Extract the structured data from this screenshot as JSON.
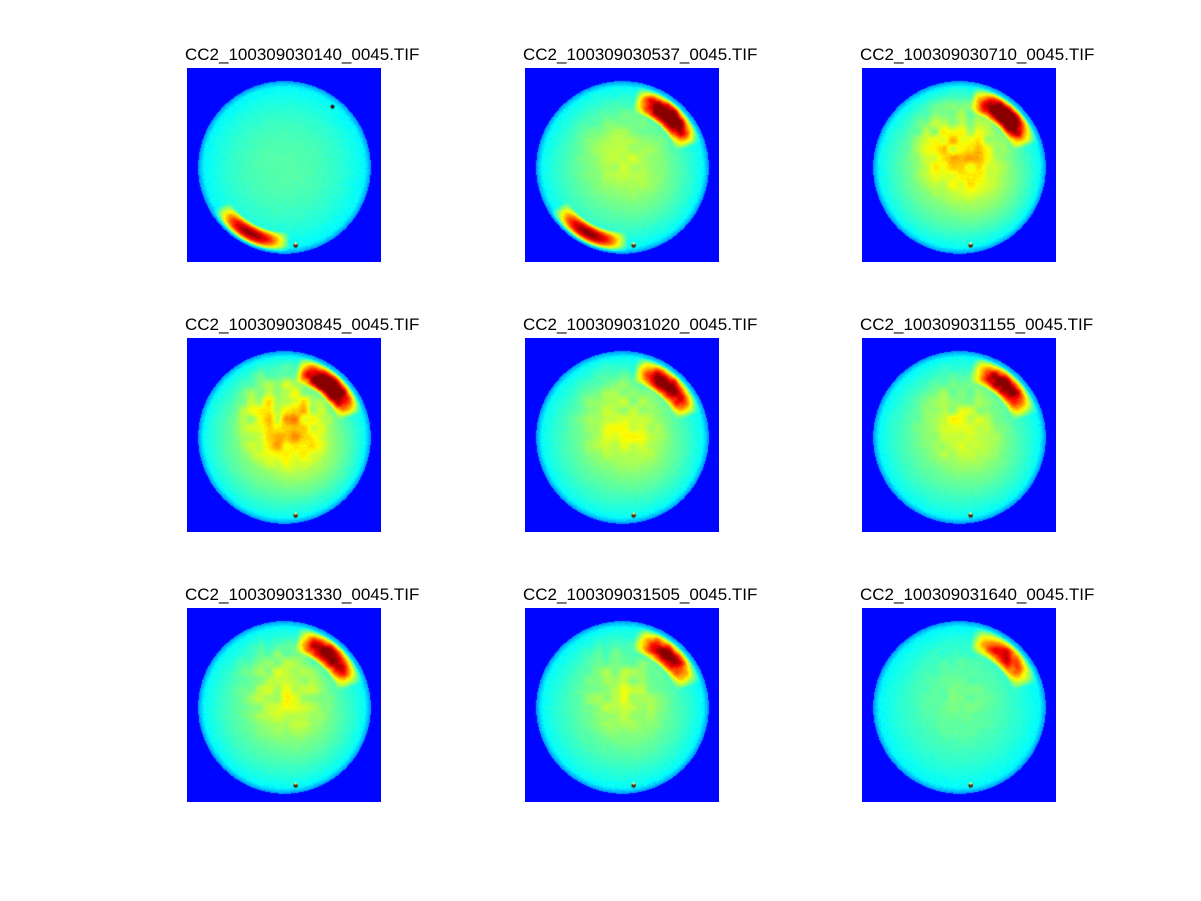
{
  "figure": {
    "panels": [
      {
        "title": "CC2_100309030140_0045.TIF",
        "arcs": [
          "southwest"
        ],
        "arc_strength": 1.0,
        "patches": 0.0,
        "brightness": 0.0
      },
      {
        "title": "CC2_100309030537_0045.TIF",
        "arcs": [
          "northeast",
          "southwest"
        ],
        "arc_strength": 1.0,
        "patches": 0.25,
        "brightness": 0.45
      },
      {
        "title": "CC2_100309030710_0045.TIF",
        "arcs": [
          "northeast"
        ],
        "arc_strength": 1.0,
        "patches": 0.7,
        "brightness": 0.8
      },
      {
        "title": "CC2_100309030845_0045.TIF",
        "arcs": [
          "northeast"
        ],
        "arc_strength": 1.0,
        "patches": 0.8,
        "brightness": 0.85
      },
      {
        "title": "CC2_100309031020_0045.TIF",
        "arcs": [
          "northeast"
        ],
        "arc_strength": 0.85,
        "patches": 0.45,
        "brightness": 0.55
      },
      {
        "title": "CC2_100309031155_0045.TIF",
        "arcs": [
          "northeast"
        ],
        "arc_strength": 0.85,
        "patches": 0.4,
        "brightness": 0.5
      },
      {
        "title": "CC2_100309031330_0045.TIF",
        "arcs": [
          "northeast"
        ],
        "arc_strength": 0.9,
        "patches": 0.45,
        "brightness": 0.45
      },
      {
        "title": "CC2_100309031505_0045.TIF",
        "arcs": [
          "northeast"
        ],
        "arc_strength": 0.8,
        "patches": 0.35,
        "brightness": 0.35
      },
      {
        "title": "CC2_100309031640_0045.TIF",
        "arcs": [
          "northeast"
        ],
        "arc_strength": 0.7,
        "patches": 0.15,
        "brightness": 0.05
      }
    ],
    "colors": {
      "background": "#1f3cff",
      "disk_edge": "#4fd0ff",
      "disk_center": "#5ee8d6",
      "bright": "#f2f020",
      "hot": "#ff6a00",
      "hottest": "#9a0000"
    }
  }
}
